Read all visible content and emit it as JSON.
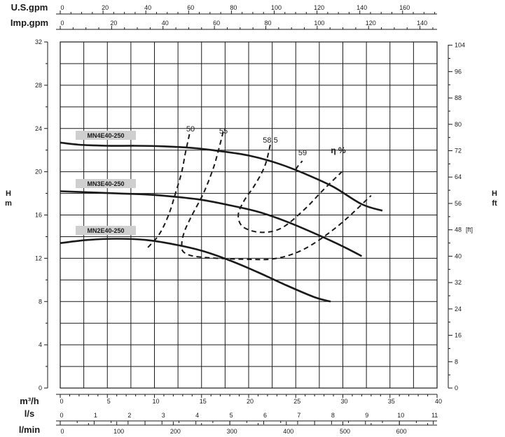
{
  "chart_data": {
    "type": "line",
    "x_axes": [
      {
        "label": "U.S.gpm",
        "ticks": [
          "0",
          "20",
          "40",
          "60",
          "80",
          "100",
          "120",
          "140",
          "160"
        ],
        "values": [
          0,
          20,
          40,
          60,
          80,
          100,
          120,
          140,
          160
        ]
      },
      {
        "label": "Imp.gpm",
        "ticks": [
          "0",
          "20",
          "40",
          "60",
          "80",
          "100",
          "120",
          "140"
        ],
        "values": [
          0,
          20,
          40,
          60,
          80,
          100,
          120,
          140
        ]
      },
      {
        "label": "m³/h",
        "ticks": [
          "0",
          "5",
          "10",
          "15",
          "20",
          "25",
          "30",
          "35",
          "40"
        ],
        "values": [
          0,
          5,
          10,
          15,
          20,
          25,
          30,
          35,
          40
        ]
      },
      {
        "label": "l/s",
        "ticks": [
          "0",
          "1",
          "2",
          "3",
          "4",
          "5",
          "6",
          "7",
          "8",
          "9",
          "10",
          "11"
        ],
        "values": [
          0,
          1,
          2,
          3,
          4,
          5,
          6,
          7,
          8,
          9,
          10,
          11
        ]
      },
      {
        "label": "l/min",
        "ticks": [
          "0",
          "100",
          "200",
          "300",
          "400",
          "500",
          "600"
        ],
        "values": [
          0,
          100,
          200,
          300,
          400,
          500,
          600
        ]
      }
    ],
    "y_left": {
      "label_top": "H",
      "label_bottom": "m",
      "ticks": [
        "0",
        "4",
        "8",
        "12",
        "16",
        "20",
        "24",
        "28",
        "32"
      ],
      "values": [
        0,
        4,
        8,
        12,
        16,
        20,
        24,
        28,
        32
      ],
      "ylim": [
        0,
        32
      ]
    },
    "y_right": {
      "label_top": "H",
      "label_bottom": "ft",
      "unit_mark": "[ft]",
      "ticks": [
        "0",
        "8",
        "16",
        "24",
        "32",
        "40",
        "48",
        "56",
        "64",
        "72",
        "80",
        "88",
        "96",
        "104"
      ],
      "values": [
        0,
        8,
        16,
        24,
        32,
        40,
        48,
        56,
        64,
        72,
        80,
        88,
        96,
        104
      ]
    },
    "xlim": [
      0,
      40
    ],
    "grid": true,
    "series": [
      {
        "name": "MN4E40-250",
        "x": [
          0,
          2,
          5,
          8,
          11,
          14,
          17,
          20,
          23,
          26,
          29,
          32,
          34.2
        ],
        "y": [
          22.7,
          22.5,
          22.4,
          22.4,
          22.35,
          22.2,
          21.9,
          21.5,
          20.8,
          19.8,
          18.6,
          17.0,
          16.4
        ]
      },
      {
        "name": "MN3E40-250",
        "x": [
          0,
          3,
          6,
          9,
          12,
          15,
          18,
          21,
          24,
          27,
          30,
          32
        ],
        "y": [
          18.2,
          18.1,
          18.0,
          17.9,
          17.7,
          17.4,
          16.9,
          16.3,
          15.4,
          14.3,
          13.1,
          12.2
        ]
      },
      {
        "name": "MN2E40-250",
        "x": [
          0,
          3,
          6,
          9,
          12,
          15,
          18,
          21,
          24,
          27,
          28.7
        ],
        "y": [
          13.4,
          13.7,
          13.8,
          13.7,
          13.3,
          12.7,
          11.8,
          10.7,
          9.5,
          8.4,
          8.0
        ]
      }
    ],
    "efficiency_curves": [
      {
        "label": "50",
        "x": [
          9.3,
          10.5,
          11.5,
          12.3,
          12.9,
          13.3,
          13.6,
          13.8
        ],
        "y": [
          13.0,
          14.2,
          16.0,
          18.2,
          20.0,
          21.8,
          23.0,
          23.8
        ]
      },
      {
        "label": "55",
        "x": [
          17.3,
          16.8,
          16.2,
          15.2,
          14.0,
          13.2,
          12.9,
          13.2,
          15.0,
          20.0,
          23.0,
          26.0,
          29.5,
          33.0
        ],
        "y": [
          23.7,
          22.0,
          20.2,
          18.0,
          16.0,
          14.5,
          13.3,
          12.5,
          12.1,
          11.9,
          12.0,
          12.9,
          15.0,
          17.8
        ]
      },
      {
        "label": "58.5",
        "x": [
          22.3,
          21.7,
          20.6,
          19.5,
          18.9,
          19.4,
          21.3,
          23.5,
          25.9,
          27.9,
          29.9
        ],
        "y": [
          22.5,
          20.5,
          18.7,
          17.3,
          16.0,
          14.9,
          14.4,
          14.8,
          16.5,
          18.3,
          20.0
        ]
      },
      {
        "label": "59",
        "x": [
          25.0,
          25.3,
          25.7
        ],
        "y": [
          20.2,
          20.6,
          21.0
        ]
      }
    ],
    "curve_labels": [
      "MN4E40-250",
      "MN3E40-250",
      "MN2E40-250"
    ],
    "efficiency_title": "η %"
  }
}
